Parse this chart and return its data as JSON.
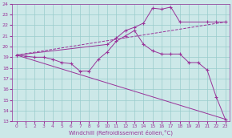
{
  "xlabel": "Windchill (Refroidissement éolien,°C)",
  "xlim": [
    -0.5,
    23.5
  ],
  "ylim": [
    13,
    24
  ],
  "yticks": [
    13,
    14,
    15,
    16,
    17,
    18,
    19,
    20,
    21,
    22,
    23,
    24
  ],
  "xticks": [
    0,
    1,
    2,
    3,
    4,
    5,
    6,
    7,
    8,
    9,
    10,
    11,
    12,
    13,
    14,
    15,
    16,
    17,
    18,
    19,
    20,
    21,
    22,
    23
  ],
  "bg_color": "#cce8e8",
  "line_color": "#993399",
  "grid_color": "#99cccc",
  "series": [
    {
      "x": [
        0,
        1,
        2,
        3,
        4,
        5,
        6,
        7,
        8,
        9,
        10,
        11,
        12,
        13,
        14,
        15,
        16,
        17,
        18,
        19,
        20,
        21,
        22,
        23
      ],
      "y": [
        19.2,
        19.1,
        19.0,
        19.0,
        18.8,
        18.5,
        18.4,
        17.7,
        17.7,
        18.8,
        19.5,
        20.5,
        21.0,
        21.5,
        20.2,
        19.6,
        19.3,
        19.3,
        19.3,
        18.5,
        18.5,
        17.8,
        15.3,
        13.2
      ],
      "marker": "+",
      "linestyle": "-"
    },
    {
      "x": [
        0,
        23
      ],
      "y": [
        19.2,
        13.2
      ],
      "marker": null,
      "linestyle": "-"
    },
    {
      "x": [
        0,
        10,
        11,
        12,
        13,
        14,
        15,
        16,
        17,
        18,
        21,
        22,
        23
      ],
      "y": [
        19.2,
        20.2,
        20.8,
        21.5,
        21.8,
        22.2,
        23.6,
        23.5,
        23.7,
        22.3,
        22.3,
        22.3,
        22.3
      ],
      "marker": "+",
      "linestyle": "-"
    },
    {
      "x": [
        0,
        23
      ],
      "y": [
        19.2,
        22.3
      ],
      "marker": null,
      "linestyle": "--"
    }
  ]
}
